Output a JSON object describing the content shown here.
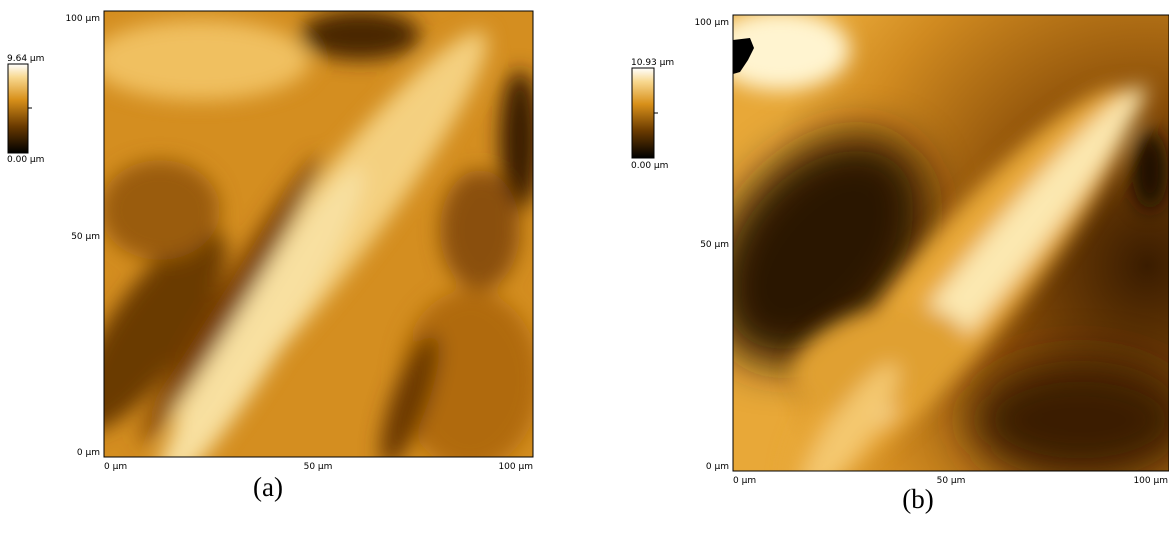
{
  "panels": [
    {
      "caption": "(a)",
      "colorbar": {
        "max": "9.64 µm",
        "min": "0.00 µm"
      },
      "y_ticks": [
        "100 µm",
        "50 µm",
        "0 µm"
      ],
      "x_ticks": [
        "0 µm",
        "50 µm",
        "100 µm"
      ]
    },
    {
      "caption": "(b)",
      "colorbar": {
        "max": "10.93 µm",
        "min": "0.00 µm"
      },
      "y_ticks": [
        "100 µm",
        "50 µm",
        "0 µm"
      ],
      "x_ticks": [
        "0 µm",
        "50 µm",
        "100 µm"
      ]
    }
  ]
}
